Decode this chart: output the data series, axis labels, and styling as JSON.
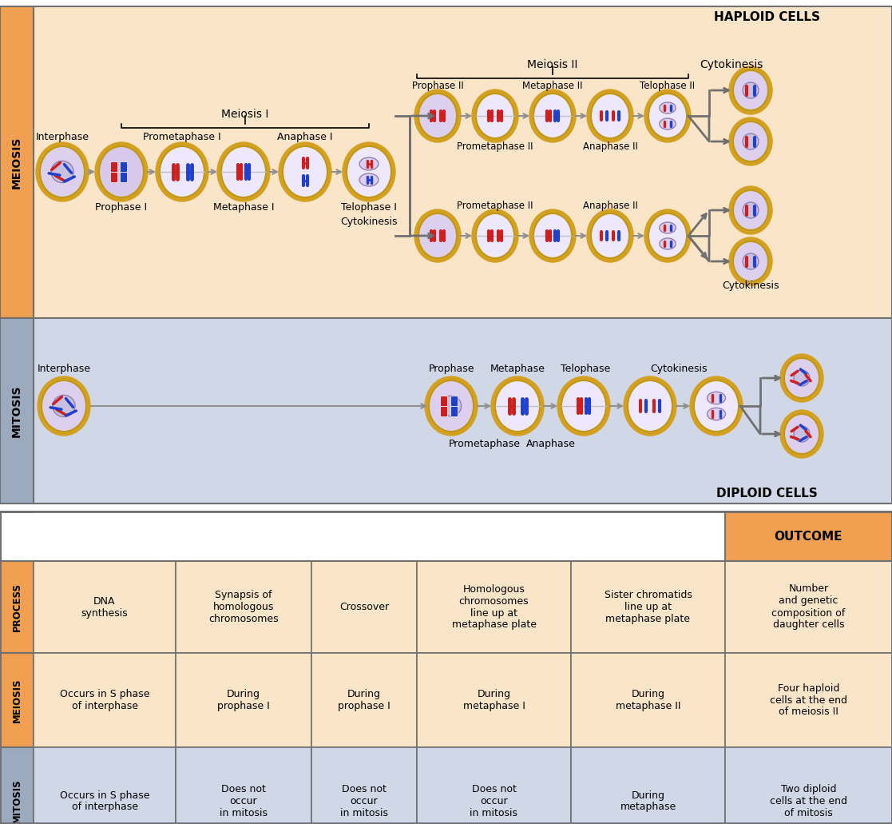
{
  "fig_width": 11.17,
  "fig_height": 10.31,
  "dpi": 100,
  "meiosis_bg": "#FAE5C8",
  "mitosis_bg": "#D0D8E8",
  "meiosis_label_bg": "#F0A050",
  "mitosis_label_bg": "#9BAABF",
  "table_header_bg": "#F0A050",
  "table_meiosis_bg": "#FAE5C8",
  "table_mitosis_bg": "#D0D8E8",
  "table_process_bg": "#FAE5C8",
  "table_outcome_bg": "#F0A050",
  "border_color": "#707070",
  "chr_red": "#CC2020",
  "chr_blue": "#2040CC",
  "cell_outer": "#D4A020",
  "cell_inner_purple": "#E0D0F0",
  "cell_inner_light": "#EEE8FF",
  "haploid_label": "HAPLOID CELLS",
  "diploid_label": "DIPLOID CELLS",
  "meiosis_label": "MEIOSIS",
  "mitosis_label": "MITOSIS",
  "meiosis_i_label": "Meiosis I",
  "meiosis_ii_label": "Meiosis II",
  "cytokinesis_label": "Cytokinesis",
  "table_rows": [
    {
      "row_label": "PROCESS",
      "row_label_bg": "#F0A050",
      "row_bg": "#FAE5C8",
      "cells": [
        "DNA\nsynthesis",
        "Synapsis of\nhomologous\nchromosomes",
        "Crossover",
        "Homologous\nchromosomes\nline up at\nmetaphase plate",
        "Sister chromatids\nline up at\nmetaphase plate",
        "Number\nand genetic\ncomposition of\ndaughter cells"
      ]
    },
    {
      "row_label": "MEIOSIS",
      "row_label_bg": "#F0A050",
      "row_bg": "#FAE5C8",
      "cells": [
        "Occurs in S phase\nof interphase",
        "During\nprophase I",
        "During\nprophase I",
        "During\nmetaphase I",
        "During\nmetaphase II",
        "Four haploid\ncells at the end\nof meiosis II"
      ]
    },
    {
      "row_label": "MITOSIS",
      "row_label_bg": "#9BAABF",
      "row_bg": "#D0D8E8",
      "cells": [
        "Occurs in S phase\nof interphase",
        "Does not\noccur\nin mitosis",
        "Does not\noccur\nin mitosis",
        "Does not\noccur\nin mitosis",
        "During\nmetaphase",
        "Two diploid\ncells at the end\nof mitosis"
      ]
    }
  ]
}
